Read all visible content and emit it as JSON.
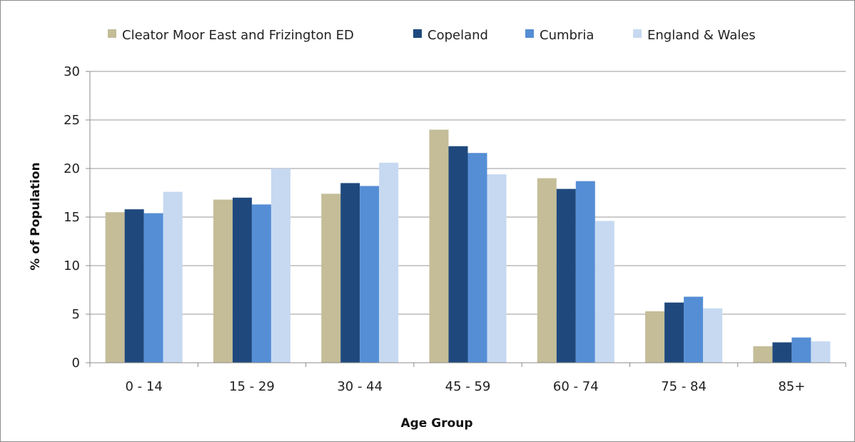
{
  "chart_data": {
    "type": "bar",
    "title": "",
    "xlabel": "Age Group",
    "ylabel": "% of Population",
    "ylim": [
      0,
      30
    ],
    "yticks": [
      0,
      5,
      10,
      15,
      20,
      25,
      30
    ],
    "grid": true,
    "legend_position": "top",
    "categories": [
      "0 - 14",
      "15 - 29",
      "30 - 44",
      "45 - 59",
      "60 - 74",
      "75 - 84",
      "85+"
    ],
    "series": [
      {
        "name": "Cleator Moor East and Frizington ED",
        "color": "#c4bd97",
        "values": [
          15.5,
          16.8,
          17.4,
          24.0,
          19.0,
          5.3,
          1.7
        ]
      },
      {
        "name": "Copeland",
        "color": "#1f497d",
        "values": [
          15.8,
          17.0,
          18.5,
          22.3,
          17.9,
          6.2,
          2.1
        ]
      },
      {
        "name": "Cumbria",
        "color": "#558ed5",
        "values": [
          15.4,
          16.3,
          18.2,
          21.6,
          18.7,
          6.8,
          2.6
        ]
      },
      {
        "name": "England & Wales",
        "color": "#c6d9f1",
        "values": [
          17.6,
          20.0,
          20.6,
          19.4,
          14.6,
          5.6,
          2.2
        ]
      }
    ]
  }
}
